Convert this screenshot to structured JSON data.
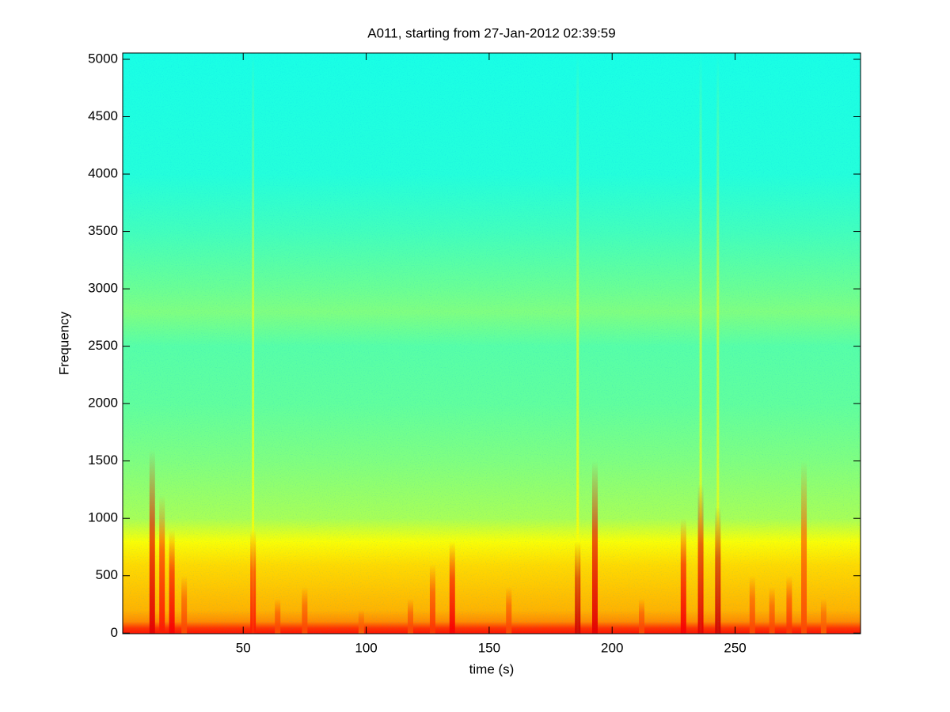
{
  "chart_data": {
    "type": "spectrogram",
    "title": "A011, starting from 27-Jan-2012 02:39:59",
    "xlabel": "time (s)",
    "ylabel": "Frequency",
    "xlim": [
      1,
      301
    ],
    "xticks": [
      50,
      100,
      150,
      200,
      250
    ],
    "ylim": [
      -5,
      5055
    ],
    "yticks": [
      0,
      500,
      1000,
      1500,
      2000,
      2500,
      3000,
      3500,
      4000,
      4500,
      5000
    ],
    "colormap": "jet",
    "clim": [
      0,
      1
    ],
    "frequency_profile": {
      "frequencies": [
        0,
        50,
        100,
        200,
        400,
        600,
        800,
        1000,
        1500,
        2000,
        2500,
        2800,
        3000,
        3500,
        4000,
        5000
      ],
      "levels": [
        0.86,
        0.82,
        0.74,
        0.7,
        0.68,
        0.66,
        0.62,
        0.54,
        0.5,
        0.47,
        0.46,
        0.5,
        0.48,
        0.44,
        0.41,
        0.4
      ]
    },
    "events": {
      "times": [
        13,
        17,
        21,
        26,
        54,
        54,
        64,
        75,
        98,
        118,
        127,
        135,
        158,
        186,
        186,
        193,
        212,
        229,
        236,
        236,
        243,
        243,
        257,
        265,
        272,
        278,
        286
      ],
      "levels": [
        0.9,
        0.85,
        0.88,
        0.8,
        0.62,
        0.85,
        0.8,
        0.8,
        0.78,
        0.8,
        0.82,
        0.88,
        0.8,
        0.62,
        0.92,
        0.9,
        0.8,
        0.88,
        0.6,
        0.9,
        0.6,
        0.92,
        0.8,
        0.8,
        0.82,
        0.8,
        0.78
      ],
      "extents": [
        1600,
        1200,
        900,
        500,
        5055,
        900,
        300,
        400,
        200,
        300,
        600,
        800,
        400,
        5055,
        800,
        1500,
        300,
        1000,
        5055,
        1300,
        5055,
        1100,
        500,
        400,
        500,
        1500,
        300
      ]
    }
  }
}
